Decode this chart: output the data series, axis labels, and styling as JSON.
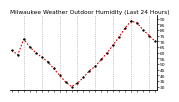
{
  "title": "Milwaukee Weather Outdoor Humidity (Last 24 Hours)",
  "x_values": [
    0,
    1,
    2,
    3,
    4,
    5,
    6,
    7,
    8,
    9,
    10,
    11,
    12,
    13,
    14,
    15,
    16,
    17,
    18,
    19,
    20,
    21,
    22,
    23,
    24
  ],
  "y_values": [
    62,
    58,
    72,
    65,
    60,
    56,
    52,
    46,
    40,
    34,
    30,
    33,
    38,
    44,
    48,
    54,
    60,
    67,
    74,
    82,
    88,
    86,
    80,
    75,
    70
  ],
  "line_color": "#dd0000",
  "marker_color": "#000000",
  "background_color": "#ffffff",
  "plot_bg_color": "#ffffff",
  "ylim": [
    27,
    93
  ],
  "xlim": [
    -0.3,
    24.3
  ],
  "ytick_labels": [
    "90",
    "85",
    "80",
    "75",
    "70",
    "65",
    "60",
    "55",
    "50",
    "45",
    "40",
    "35",
    "30"
  ],
  "yticks": [
    90,
    85,
    80,
    75,
    70,
    65,
    60,
    55,
    50,
    45,
    40,
    35,
    30
  ],
  "grid_color": "#999999",
  "title_fontsize": 4.2,
  "tick_fontsize": 3.2,
  "num_xticks": 25,
  "vgrid_positions": [
    2,
    5,
    8,
    11,
    14,
    17,
    20,
    23
  ],
  "line_width": 0.8,
  "marker_size": 1.3
}
